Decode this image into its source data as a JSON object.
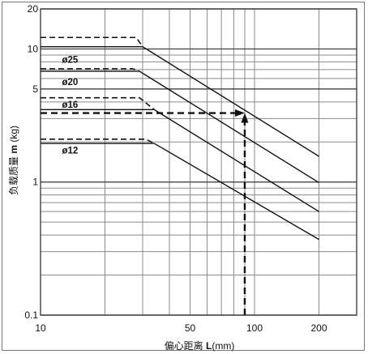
{
  "chart_data": {
    "type": "line",
    "x_scale": "log",
    "y_scale": "log",
    "xlim": [
      10,
      300
    ],
    "ylim": [
      0.1,
      20
    ],
    "xlabel_prefix": "偏心距离 ",
    "xlabel_var": "L",
    "xlabel_unit": "(mm)",
    "ylabel_prefix": "负载质量 ",
    "ylabel_var": "m",
    "ylabel_unit": " (kg)",
    "x_ticks": [
      {
        "value": 10,
        "label": "10"
      },
      {
        "value": 50,
        "label": "50"
      },
      {
        "value": 100,
        "label": "100"
      },
      {
        "value": 200,
        "label": "200"
      }
    ],
    "y_ticks": [
      {
        "value": 20,
        "label": "20"
      },
      {
        "value": 10,
        "label": "10"
      },
      {
        "value": 5,
        "label": "5"
      },
      {
        "value": 1,
        "label": "1"
      },
      {
        "value": 0.1,
        "label": "0.1"
      }
    ],
    "x_grid": [
      20,
      30,
      40,
      50,
      60,
      70,
      80,
      90,
      100,
      200
    ],
    "y_grid": [
      0.2,
      0.3,
      0.4,
      0.5,
      0.6,
      0.7,
      0.8,
      0.9,
      2,
      3,
      4,
      5,
      6,
      7,
      8,
      9
    ],
    "grid": true,
    "series": [
      {
        "name": "ø25",
        "label_x": 12.6,
        "label_y": 8.3,
        "flat": {
          "x": [
            10,
            30
          ],
          "y": [
            10.4,
            10.4
          ]
        },
        "dashed": {
          "x": [
            10,
            28,
            30
          ],
          "y": [
            12.2,
            12.2,
            10.4
          ]
        },
        "slope": {
          "x": [
            30,
            200
          ],
          "y": [
            10.4,
            1.56
          ]
        }
      },
      {
        "name": "ø20",
        "label_x": 12.6,
        "label_y": 5.65,
        "flat": {
          "x": [
            10,
            29
          ],
          "y": [
            6.8,
            6.8
          ]
        },
        "dashed": {
          "x": [
            10,
            27,
            29
          ],
          "y": [
            7.1,
            7.1,
            6.8
          ]
        },
        "slope": {
          "x": [
            29,
            200
          ],
          "y": [
            6.8,
            0.99
          ]
        }
      },
      {
        "name": "ø16",
        "label_x": 12.6,
        "label_y": 3.82,
        "flat": {
          "x": [
            10,
            34
          ],
          "y": [
            3.5,
            3.5
          ]
        },
        "dashed": {
          "x": [
            10,
            29,
            34
          ],
          "y": [
            4.3,
            4.3,
            3.5
          ]
        },
        "slope": {
          "x": [
            34,
            200
          ],
          "y": [
            3.5,
            0.6
          ]
        }
      },
      {
        "name": "ø12",
        "label_x": 12.6,
        "label_y": 1.73,
        "flat": {
          "x": [
            10,
            34
          ],
          "y": [
            1.95,
            1.95
          ]
        },
        "dashed": {
          "x": [
            10,
            31,
            34
          ],
          "y": [
            2.1,
            2.1,
            1.95
          ]
        },
        "slope": {
          "x": [
            34,
            200
          ],
          "y": [
            1.95,
            0.37
          ]
        }
      }
    ],
    "annotation": {
      "x": 90,
      "y": 3.3,
      "path": [
        [
          10,
          3.3
        ],
        [
          90,
          3.3
        ],
        [
          90,
          0.1
        ]
      ],
      "style": "dashed",
      "arrowheads": [
        "at (90, 3.3) pointing up",
        "at (90, 3.3) pointing right"
      ]
    },
    "colors": {
      "line": "#111111",
      "grid": "#8a8a8a",
      "frame": "#777777"
    }
  }
}
